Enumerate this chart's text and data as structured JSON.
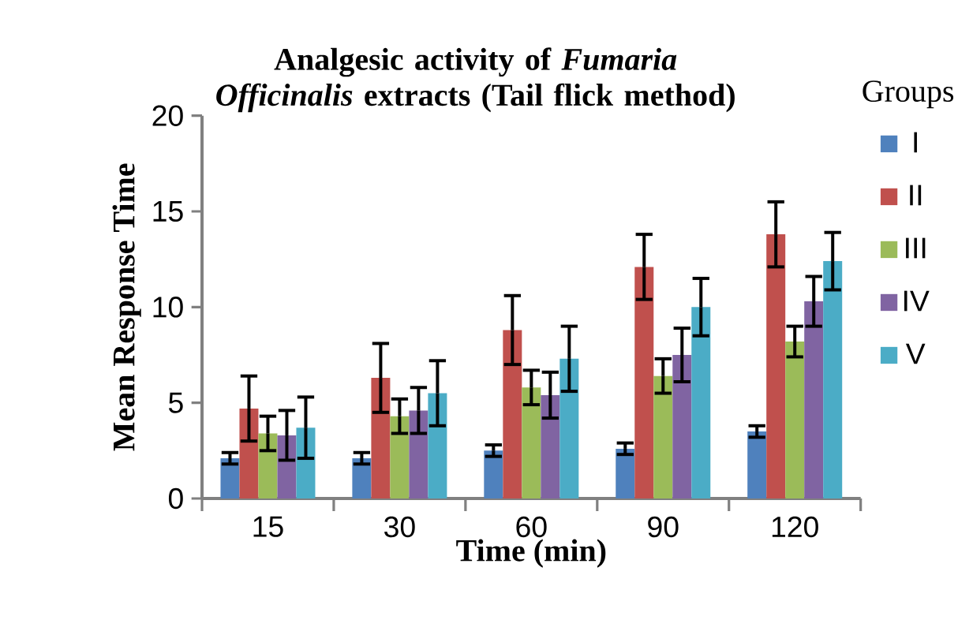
{
  "chart_data": {
    "type": "bar",
    "title": "Analgesic activity of *Fumaria Officinalis* extracts (Tail flick method)",
    "xlabel": "Time (min)",
    "ylabel": "Mean Response Time",
    "legend_title": "Groups",
    "legend": "right",
    "categories": [
      "15",
      "30",
      "60",
      "90",
      "120"
    ],
    "ylim": [
      0,
      20
    ],
    "yticks": [
      0,
      5,
      10,
      15,
      20
    ],
    "series": [
      {
        "name": "I",
        "color": "#4f81bd",
        "values": [
          2.1,
          2.1,
          2.5,
          2.6,
          3.5
        ],
        "errors": [
          0.3,
          0.3,
          0.3,
          0.3,
          0.3
        ]
      },
      {
        "name": "II",
        "color": "#c0504d",
        "values": [
          4.7,
          6.3,
          8.8,
          12.1,
          13.8
        ],
        "errors": [
          1.7,
          1.8,
          1.8,
          1.7,
          1.7
        ]
      },
      {
        "name": "III",
        "color": "#9bbb59",
        "values": [
          3.4,
          4.3,
          5.8,
          6.4,
          8.2
        ],
        "errors": [
          0.9,
          0.9,
          0.9,
          0.9,
          0.8
        ]
      },
      {
        "name": "IV",
        "color": "#8064a2",
        "values": [
          3.3,
          4.6,
          5.4,
          7.5,
          10.3
        ],
        "errors": [
          1.3,
          1.2,
          1.2,
          1.4,
          1.3
        ]
      },
      {
        "name": "V",
        "color": "#4bacc6",
        "values": [
          3.7,
          5.5,
          7.3,
          10.0,
          12.4
        ],
        "errors": [
          1.6,
          1.7,
          1.7,
          1.5,
          1.5
        ]
      }
    ]
  }
}
